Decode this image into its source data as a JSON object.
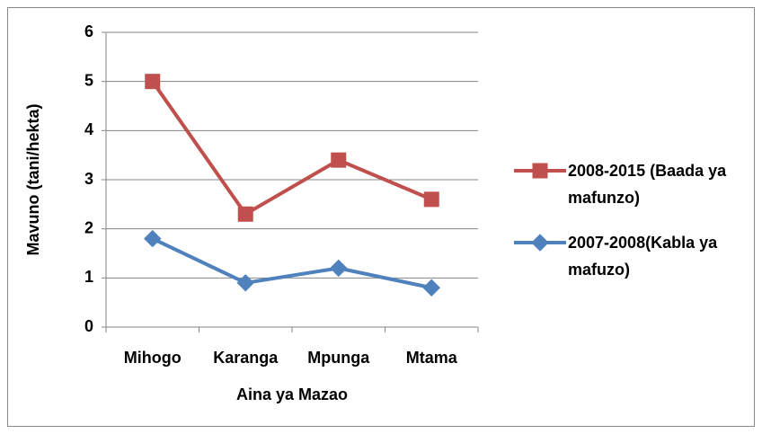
{
  "chart_data": {
    "type": "line",
    "categories": [
      "Mihogo",
      "Karanga",
      "Mpunga",
      "Mtama"
    ],
    "series": [
      {
        "name": "2008-2015 (Baada ya mafunzo)",
        "color": "#c0504d",
        "marker": "square",
        "values": [
          5,
          2.3,
          3.4,
          2.6
        ]
      },
      {
        "name": "2007-2008(Kabla ya mafuzo)",
        "color": "#4f81bd",
        "marker": "diamond",
        "values": [
          1.8,
          0.9,
          1.2,
          0.8
        ]
      }
    ],
    "xlabel": "Aina ya Mazao",
    "ylabel": "Mavuno (tani/hekta)",
    "ylim": [
      0,
      6
    ],
    "yticks": [
      0,
      1,
      2,
      3,
      4,
      5,
      6
    ],
    "grid": true,
    "legend": "right"
  }
}
